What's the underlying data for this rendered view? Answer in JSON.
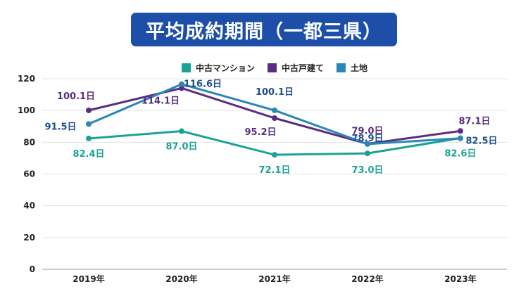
{
  "header": {
    "title": "平均成約期間（一都三県）"
  },
  "chart_data": {
    "type": "line",
    "title": "平均成約期間（一都三県）",
    "xlabel": "",
    "ylabel": "",
    "categories": [
      "2019年",
      "2020年",
      "2021年",
      "2022年",
      "2023年"
    ],
    "ylim": [
      0,
      120
    ],
    "yticks": [
      0,
      20,
      40,
      60,
      80,
      100,
      120
    ],
    "grid": true,
    "legend_position": "top-center",
    "value_suffix": "日",
    "series": [
      {
        "name": "中古マンション",
        "color": "#1aa394",
        "label_color": "#1aa394",
        "values": [
          82.4,
          87.0,
          72.1,
          73.0,
          82.6
        ],
        "labels": [
          "82.4日",
          "87.0日",
          "72.1日",
          "73.0日",
          "82.6日"
        ]
      },
      {
        "name": "中古戸建て",
        "color": "#5b2d82",
        "label_color": "#5b2d82",
        "values": [
          100.1,
          114.1,
          95.2,
          79.0,
          87.1
        ],
        "labels": [
          "100.1日",
          "114.1日",
          "95.2日",
          "79.0日",
          "87.1日"
        ]
      },
      {
        "name": "土地",
        "color": "#2b87b8",
        "label_color": "#1f4e8c",
        "values": [
          91.5,
          116.6,
          100.1,
          78.9,
          82.5
        ],
        "labels": [
          "91.5日",
          "116.6日",
          "100.1日",
          "78.9日",
          "82.5日"
        ]
      }
    ]
  }
}
